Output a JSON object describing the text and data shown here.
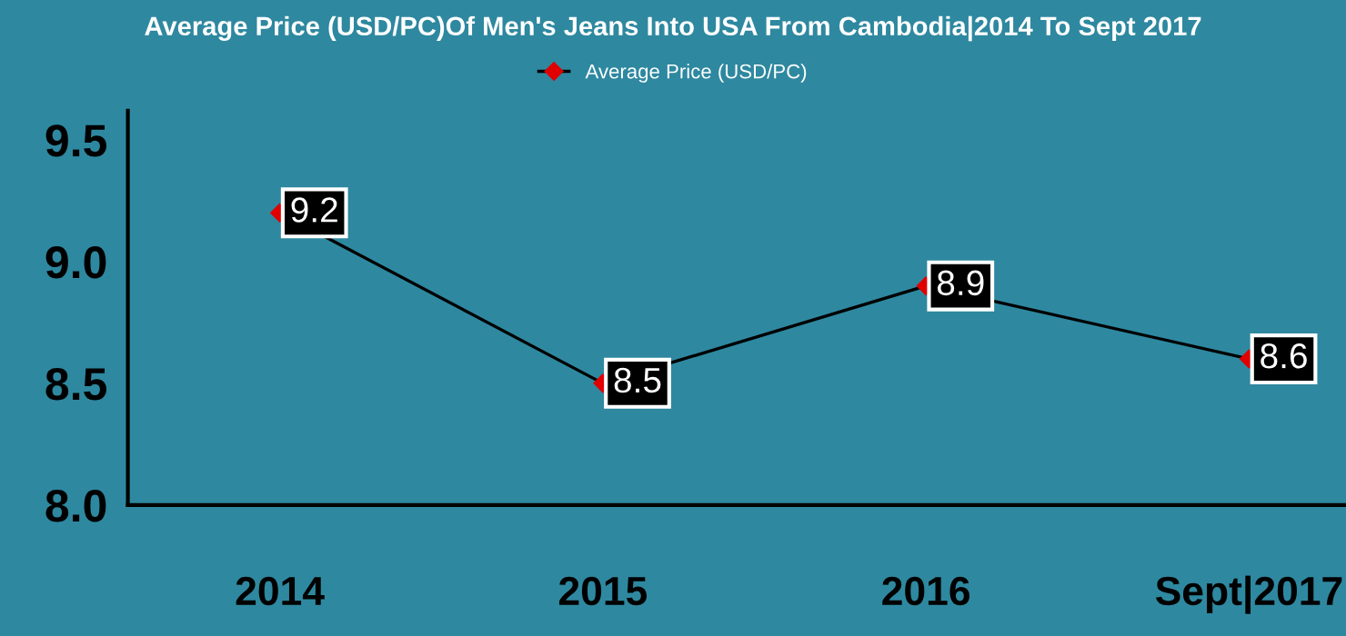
{
  "chart_data": {
    "type": "line",
    "title": "Average Price (USD/PC)Of Men's Jeans Into USA From Cambodia|2014 To Sept 2017",
    "categories": [
      "2014",
      "2015",
      "2016",
      "Sept|2017"
    ],
    "series": [
      {
        "name": "Average Price (USD/PC)",
        "color": "#e00000",
        "values": [
          9.2,
          8.5,
          8.9,
          8.6
        ]
      }
    ],
    "ylim": [
      8.0,
      9.62
    ],
    "yticks": [
      {
        "value": 8.0,
        "label": "8.0"
      },
      {
        "value": 8.5,
        "label": "8.5"
      },
      {
        "value": 9.0,
        "label": "9.0"
      },
      {
        "value": 9.5,
        "label": "9.5"
      }
    ],
    "data_labels": true,
    "grid": false,
    "legend": "top",
    "marker": "diamond",
    "line_style": "solid"
  }
}
